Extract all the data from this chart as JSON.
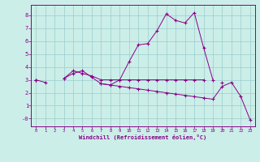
{
  "xlabel": "Windchill (Refroidissement éolien,°C)",
  "background_color": "#cceee8",
  "line_color": "#880088",
  "grid_color": "#99cccc",
  "hours": [
    0,
    1,
    2,
    3,
    4,
    5,
    6,
    7,
    8,
    9,
    10,
    11,
    12,
    13,
    14,
    15,
    16,
    17,
    18,
    19,
    20,
    21,
    22,
    23
  ],
  "line1": [
    3.0,
    2.8,
    null,
    3.1,
    3.5,
    3.7,
    3.2,
    2.7,
    2.6,
    3.0,
    4.4,
    5.7,
    5.8,
    6.8,
    8.1,
    7.6,
    7.4,
    8.2,
    5.5,
    3.0,
    null,
    null,
    null,
    null
  ],
  "line2": [
    3.0,
    null,
    null,
    3.1,
    3.7,
    3.5,
    3.3,
    3.0,
    3.0,
    3.0,
    3.0,
    3.0,
    3.0,
    3.0,
    3.0,
    3.0,
    3.0,
    3.0,
    3.0,
    null,
    2.8,
    null,
    null,
    null
  ],
  "line3": [
    3.0,
    null,
    null,
    null,
    null,
    null,
    null,
    2.7,
    2.6,
    2.5,
    2.4,
    2.3,
    2.2,
    2.1,
    2.0,
    1.9,
    1.8,
    1.7,
    1.6,
    1.5,
    2.5,
    2.8,
    1.7,
    -0.1
  ],
  "ylim": [
    -0.6,
    8.8
  ],
  "xlim": [
    -0.5,
    23.5
  ],
  "yticks": [
    0,
    1,
    2,
    3,
    4,
    5,
    6,
    7,
    8
  ],
  "xticks": [
    0,
    1,
    2,
    3,
    4,
    5,
    6,
    7,
    8,
    9,
    10,
    11,
    12,
    13,
    14,
    15,
    16,
    17,
    18,
    19,
    20,
    21,
    22,
    23
  ]
}
